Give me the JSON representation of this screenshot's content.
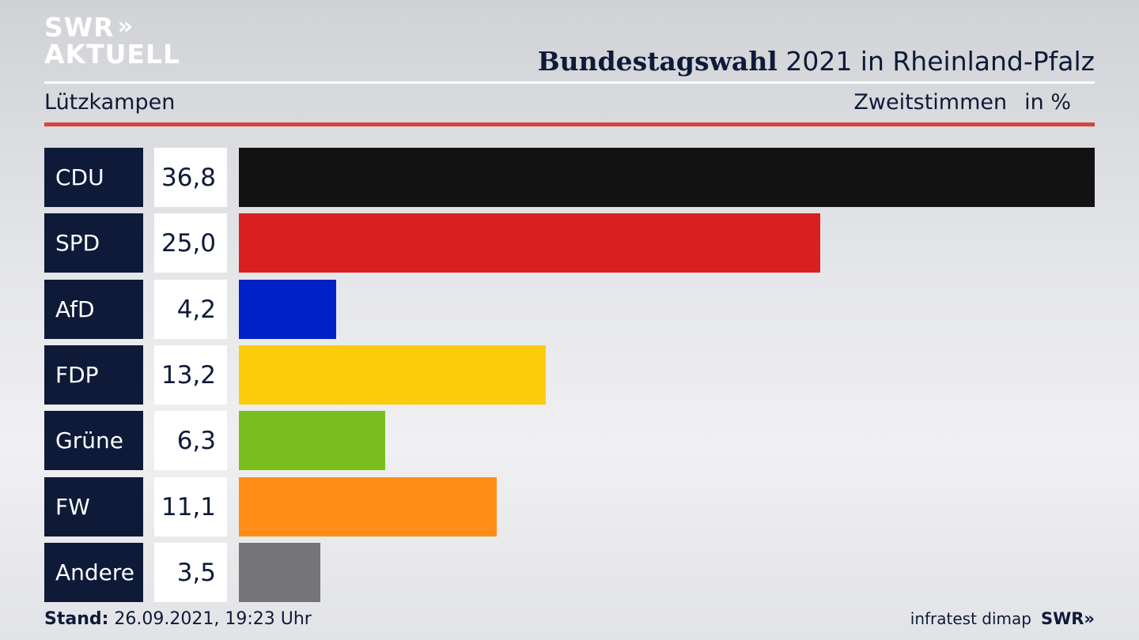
{
  "logo": {
    "line1": "SWR",
    "chevrons": "»",
    "line2": "AKTUELL"
  },
  "header": {
    "title_bold": "Bundestagswahl",
    "title_rest": " 2021 in Rheinland-Pfalz",
    "place": "Lützkampen",
    "measure": "Zweitstimmen",
    "unit": "in %"
  },
  "chart_data": {
    "type": "bar",
    "orientation": "horizontal",
    "categories": [
      "CDU",
      "SPD",
      "AfD",
      "FDP",
      "Grüne",
      "FW",
      "Andere"
    ],
    "values": [
      36.8,
      25.0,
      4.2,
      13.2,
      6.3,
      11.1,
      3.5
    ],
    "value_labels": [
      "36,8",
      "25,0",
      "4,2",
      "13,2",
      "6,3",
      "11,1",
      "3,5"
    ],
    "colors": [
      "#121212",
      "#d92020",
      "#0021c8",
      "#fdcc0c",
      "#7abe1e",
      "#fe8e18",
      "#757577"
    ],
    "xlim": [
      0,
      36.8
    ]
  },
  "footer": {
    "stand_label": "Stand:",
    "stand_value": " 26.09.2021, 19:23 Uhr",
    "source": "infratest dimap",
    "brand": "SWR»"
  }
}
